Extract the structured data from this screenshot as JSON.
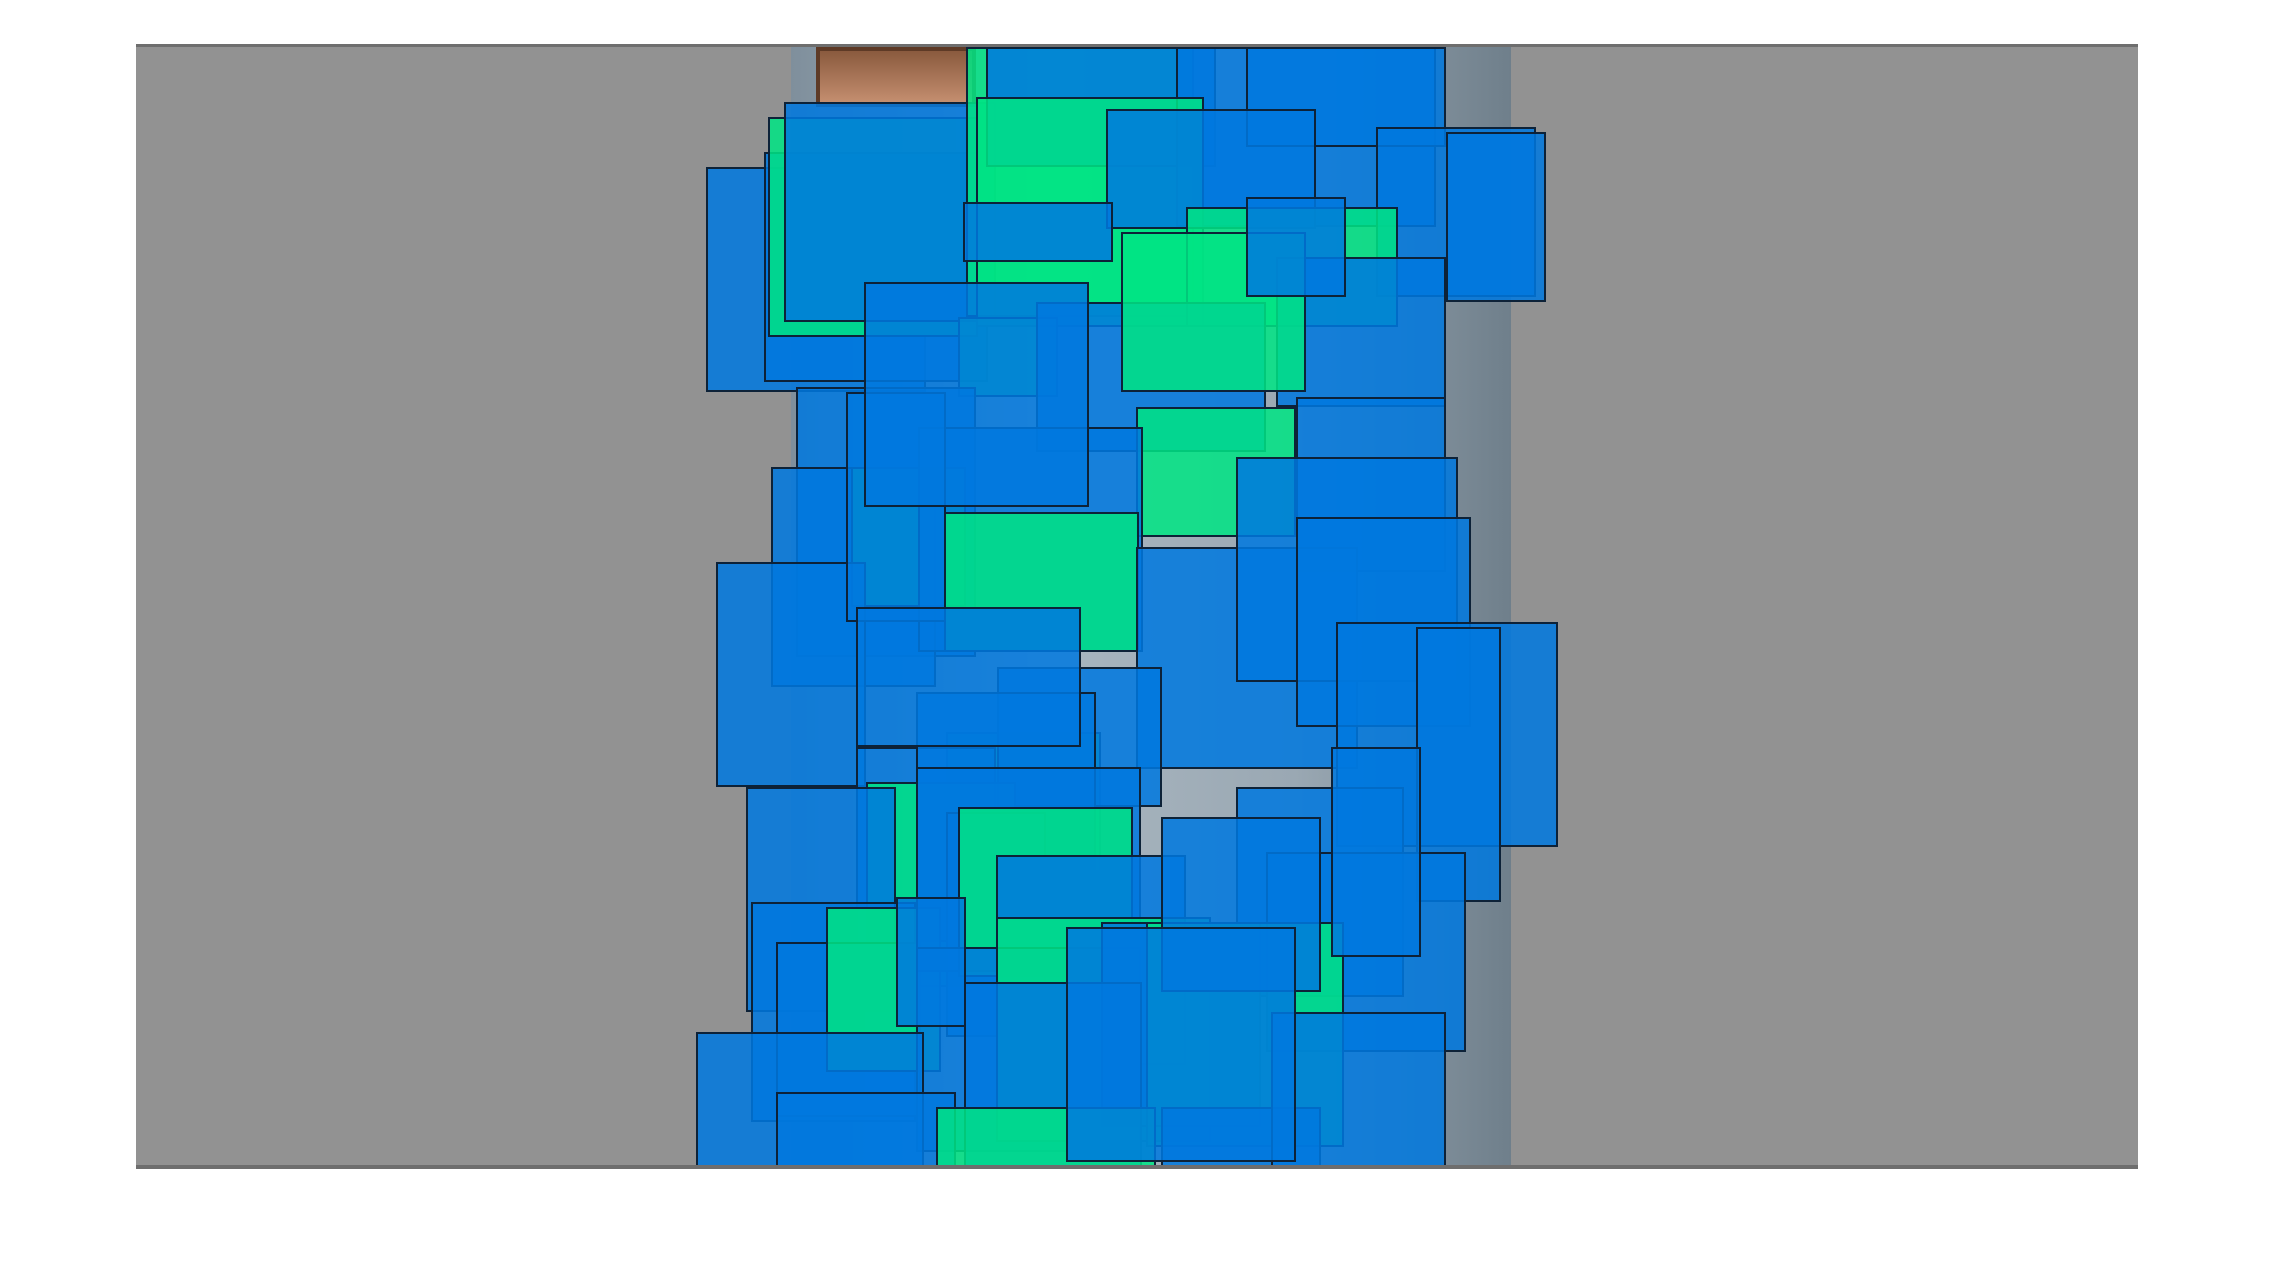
{
  "viewer": {
    "background_color": "#ffffff",
    "canvas_color": "#929292"
  },
  "overlay": {
    "colors": {
      "blue": "#0078de",
      "green": "#00e484",
      "outline": "#0d2238"
    }
  }
}
